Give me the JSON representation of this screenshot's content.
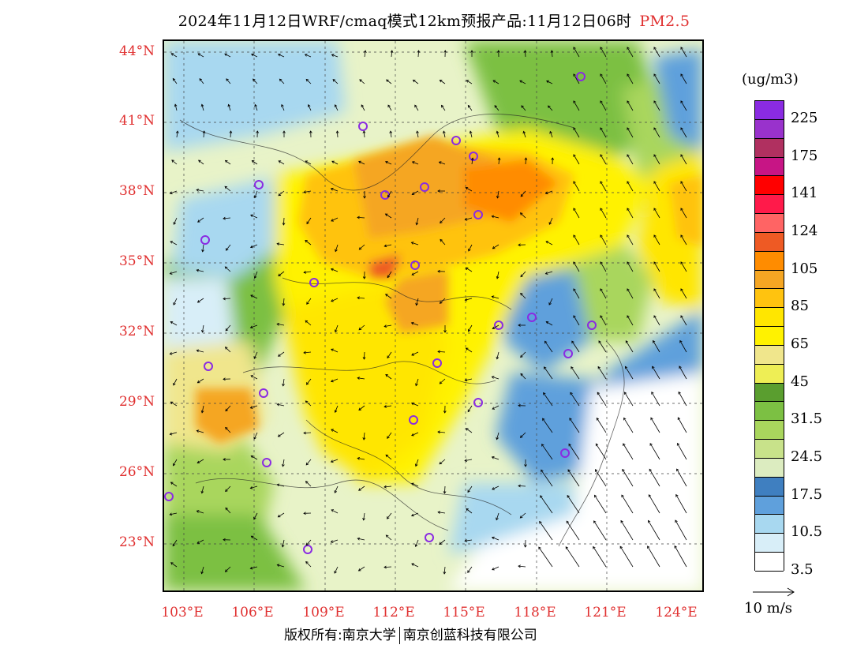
{
  "title": {
    "text": "2024年11月12日WRF/cmaq模式12km预报产品:11月12日06时",
    "pollutant": "PM2.5"
  },
  "axes": {
    "lat_labels": [
      "44°N",
      "41°N",
      "38°N",
      "35°N",
      "32°N",
      "29°N",
      "26°N",
      "23°N"
    ],
    "lon_labels": [
      "103°E",
      "106°E",
      "109°E",
      "112°E",
      "115°E",
      "118°E",
      "121°E",
      "124°E"
    ],
    "lat_values": [
      44,
      41,
      38,
      35,
      32,
      29,
      26,
      23
    ],
    "lon_values": [
      103,
      106,
      109,
      112,
      115,
      118,
      121,
      124
    ]
  },
  "legend": {
    "unit": "(ug/m3)",
    "labels": [
      "225",
      "175",
      "141",
      "124",
      "105",
      "85",
      "65",
      "45",
      "31.5",
      "24.5",
      "17.5",
      "10.5",
      "3.5"
    ],
    "colors": [
      "#8a2be2",
      "#9932cc",
      "#b03060",
      "#c71585",
      "#ff0000",
      "#ff1a4a",
      "#ff6464",
      "#ee5a24",
      "#ff8c00",
      "#f5a623",
      "#ffc30f",
      "#ffe600",
      "#fff200",
      "#f0e68c",
      "#eeee55",
      "#5a9e2f",
      "#7cc043",
      "#a9d65d",
      "#c8e28a",
      "#dcecc0",
      "#3f7fc0",
      "#5fa0dc",
      "#a8d8f0",
      "#d8eef8",
      "#ffffff"
    ]
  },
  "vector_reference": {
    "label": "10 m/s"
  },
  "footer": {
    "copyright": "版权所有:南京大学",
    "company": "南京创蓝科技有限公司"
  }
}
